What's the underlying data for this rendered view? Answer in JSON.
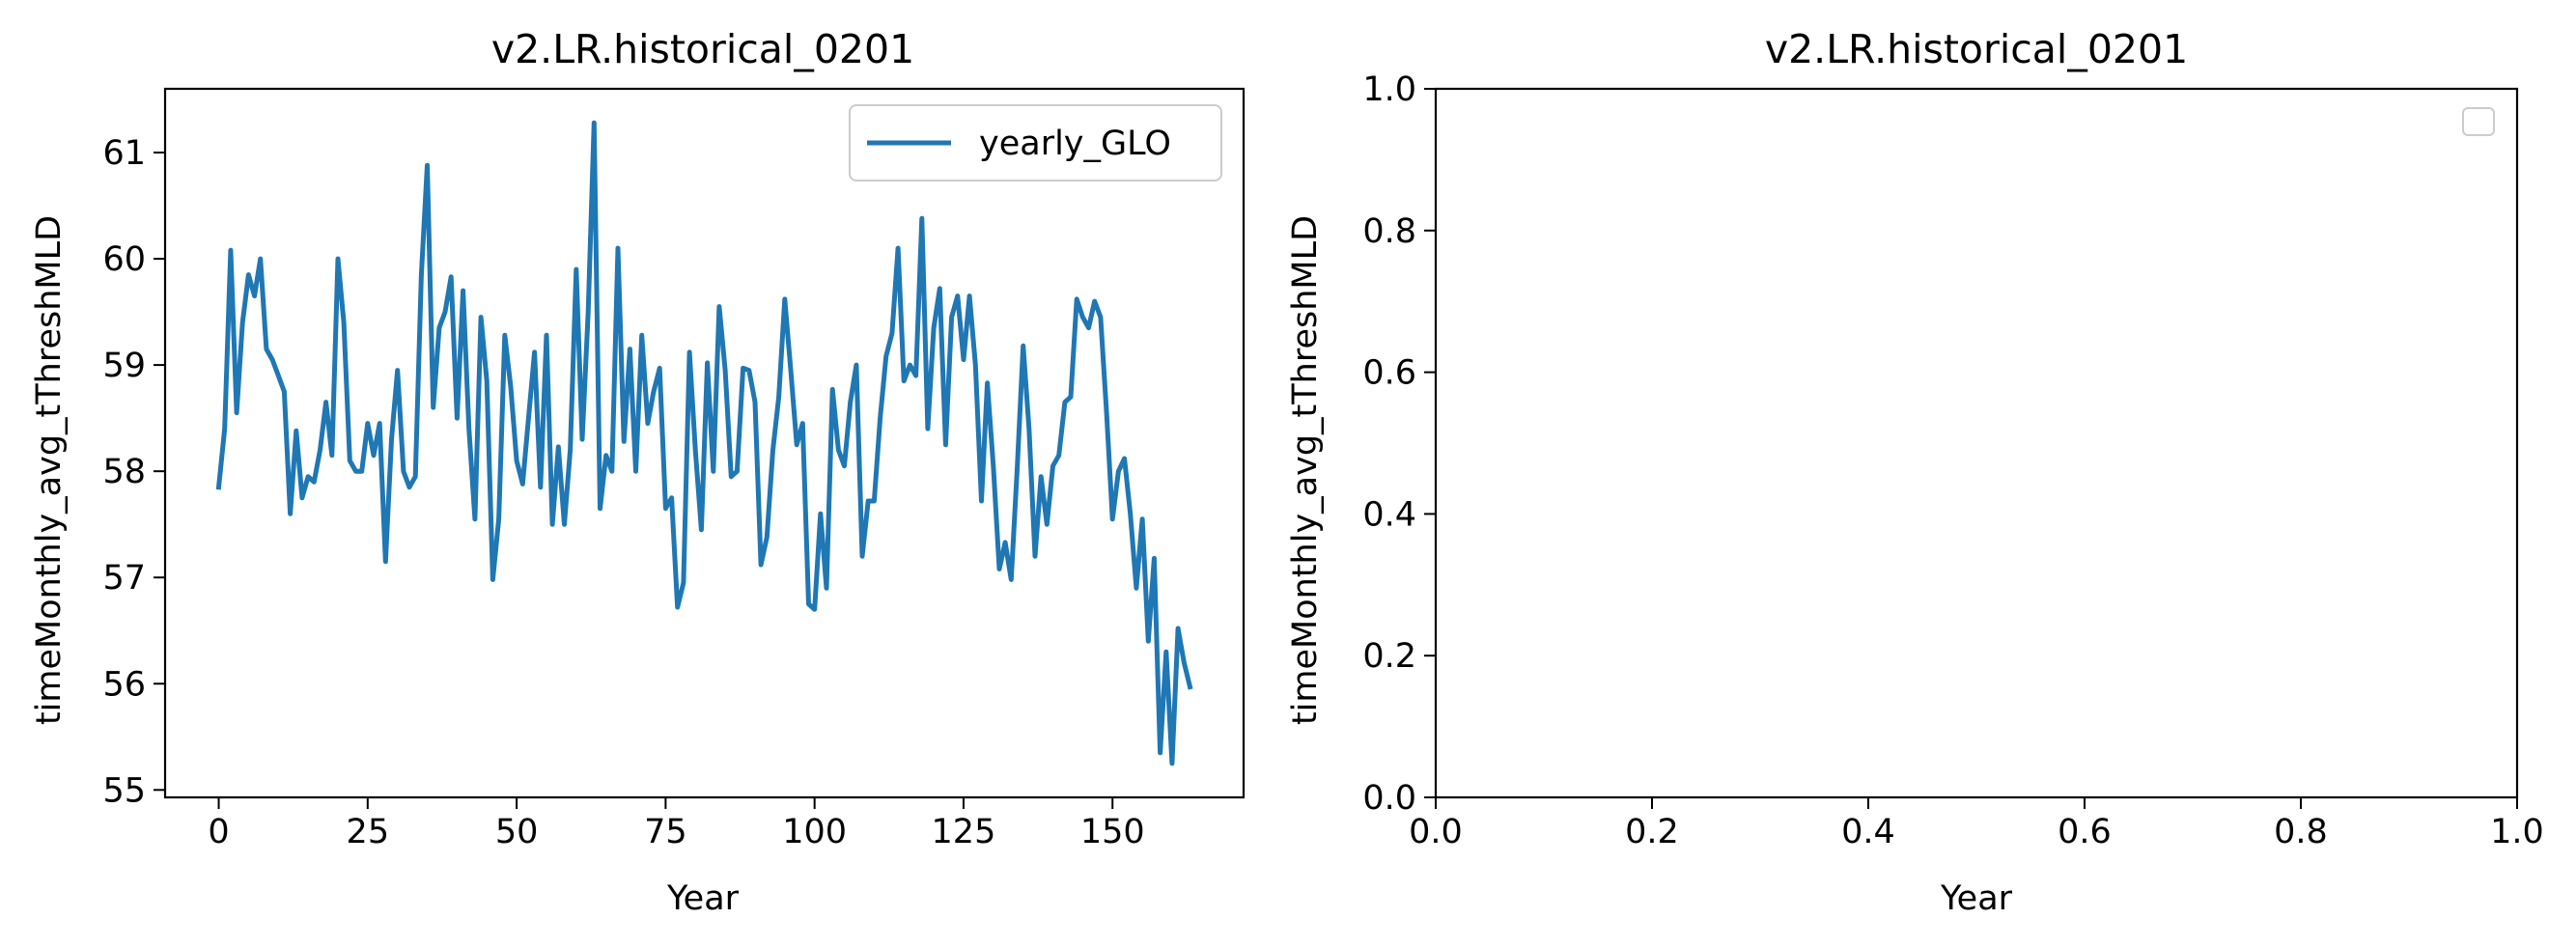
{
  "colors": {
    "series": "#1f77b4",
    "axes": "#000000",
    "legend_border": "#cccccc"
  },
  "chart_data": [
    {
      "type": "line",
      "title": "v2.LR.historical_0201",
      "xlabel": "Year",
      "ylabel": "timeMonthly_avg_tThreshMLD",
      "xlim": [
        -9,
        172
      ],
      "ylim": [
        54.93,
        61.6
      ],
      "xticks": [
        0,
        25,
        50,
        75,
        100,
        125,
        150
      ],
      "xtick_labels": [
        "0",
        "25",
        "50",
        "75",
        "100",
        "125",
        "150"
      ],
      "yticks": [
        55,
        56,
        57,
        58,
        59,
        60,
        61
      ],
      "ytick_labels": [
        "55",
        "56",
        "57",
        "58",
        "59",
        "60",
        "61"
      ],
      "legend": {
        "position": "top-right",
        "entries": [
          "yearly_GLO"
        ]
      },
      "series": [
        {
          "name": "yearly_GLO",
          "x": [
            0,
            1,
            2,
            3,
            4,
            5,
            6,
            7,
            8,
            9,
            10,
            11,
            12,
            13,
            14,
            15,
            16,
            17,
            18,
            19,
            20,
            21,
            22,
            23,
            24,
            25,
            26,
            27,
            28,
            29,
            30,
            31,
            32,
            33,
            34,
            35,
            36,
            37,
            38,
            39,
            40,
            41,
            42,
            43,
            44,
            45,
            46,
            47,
            48,
            49,
            50,
            51,
            52,
            53,
            54,
            55,
            56,
            57,
            58,
            59,
            60,
            61,
            62,
            63,
            64,
            65,
            66,
            67,
            68,
            69,
            70,
            71,
            72,
            73,
            74,
            75,
            76,
            77,
            78,
            79,
            80,
            81,
            82,
            83,
            84,
            85,
            86,
            87,
            88,
            89,
            90,
            91,
            92,
            93,
            94,
            95,
            96,
            97,
            98,
            99,
            100,
            101,
            102,
            103,
            104,
            105,
            106,
            107,
            108,
            109,
            110,
            111,
            112,
            113,
            114,
            115,
            116,
            117,
            118,
            119,
            120,
            121,
            122,
            123,
            124,
            125,
            126,
            127,
            128,
            129,
            130,
            131,
            132,
            133,
            134,
            135,
            136,
            137,
            138,
            139,
            140,
            141,
            142,
            143,
            144,
            145,
            146,
            147,
            148,
            149,
            150,
            151,
            152,
            153,
            154,
            155,
            156,
            157,
            158,
            159,
            160,
            161,
            162,
            163
          ],
          "y": [
            57.85,
            58.4,
            60.08,
            58.55,
            59.4,
            59.85,
            59.65,
            60.0,
            59.15,
            59.05,
            58.9,
            58.75,
            57.6,
            58.38,
            57.75,
            57.95,
            57.9,
            58.2,
            58.65,
            58.15,
            60.0,
            59.4,
            58.1,
            58.0,
            58.0,
            58.45,
            58.15,
            58.45,
            57.15,
            58.3,
            58.95,
            58.0,
            57.85,
            57.95,
            59.85,
            60.88,
            58.6,
            59.35,
            59.5,
            59.83,
            58.5,
            59.7,
            58.4,
            57.55,
            59.45,
            58.85,
            56.98,
            57.55,
            59.28,
            58.8,
            58.1,
            57.88,
            58.5,
            59.12,
            57.85,
            59.28,
            57.5,
            58.23,
            57.5,
            58.2,
            59.9,
            58.3,
            59.5,
            61.28,
            57.65,
            58.15,
            58.0,
            60.1,
            58.28,
            59.15,
            58.0,
            59.28,
            58.45,
            58.75,
            58.97,
            57.65,
            57.75,
            56.72,
            56.95,
            59.12,
            58.2,
            57.45,
            59.02,
            58.0,
            59.55,
            58.95,
            57.95,
            58.0,
            58.97,
            58.95,
            58.65,
            57.12,
            57.38,
            58.2,
            58.7,
            59.62,
            58.95,
            58.25,
            58.45,
            56.75,
            56.7,
            57.6,
            56.9,
            58.77,
            58.2,
            58.05,
            58.65,
            59.0,
            57.2,
            57.72,
            57.72,
            58.5,
            59.08,
            59.3,
            60.1,
            58.85,
            59.0,
            58.9,
            60.38,
            58.4,
            59.35,
            59.72,
            58.25,
            59.45,
            59.65,
            59.05,
            59.65,
            59.0,
            57.72,
            58.83,
            58.05,
            57.08,
            57.33,
            56.98,
            58.02,
            59.18,
            58.4,
            57.2,
            57.95,
            57.5,
            58.05,
            58.15,
            58.65,
            58.7,
            59.62,
            59.45,
            59.35,
            59.6,
            59.45,
            58.55,
            57.55,
            58.0,
            58.12,
            57.6,
            56.9,
            57.55,
            56.4,
            57.18,
            55.35,
            56.3,
            55.25,
            56.52,
            56.2,
            55.97
          ]
        }
      ]
    },
    {
      "type": "line",
      "title": "v2.LR.historical_0201",
      "xlabel": "Year",
      "ylabel": "timeMonthly_avg_tThreshMLD",
      "xlim": [
        0.0,
        1.0
      ],
      "ylim": [
        0.0,
        1.0
      ],
      "xticks": [
        0.0,
        0.2,
        0.4,
        0.6,
        0.8,
        1.0
      ],
      "xtick_labels": [
        "0.0",
        "0.2",
        "0.4",
        "0.6",
        "0.8",
        "1.0"
      ],
      "yticks": [
        0.0,
        0.2,
        0.4,
        0.6,
        0.8,
        1.0
      ],
      "ytick_labels": [
        "0.0",
        "0.2",
        "0.4",
        "0.6",
        "0.8",
        "1.0"
      ],
      "legend": {
        "position": "top-right",
        "entries": []
      },
      "series": []
    }
  ]
}
